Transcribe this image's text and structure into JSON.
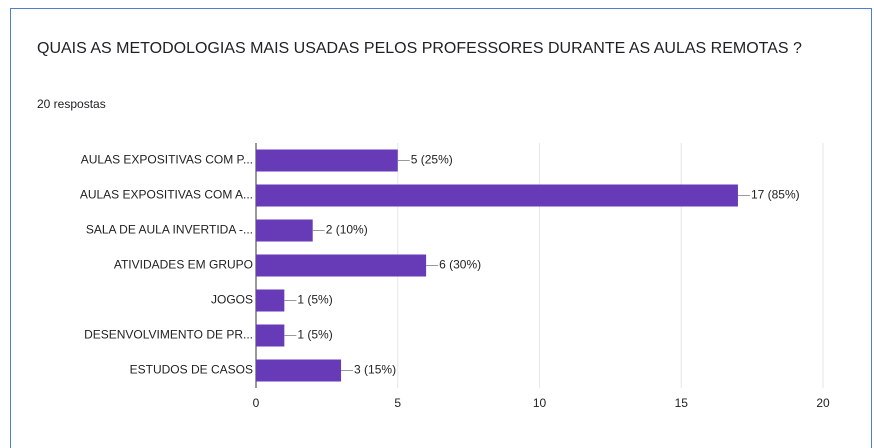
{
  "chart_data": {
    "type": "barh",
    "title": "QUAIS AS METODOLOGIAS MAIS USADAS PELOS PROFESSORES DURANTE AS AULAS REMOTAS ?",
    "subtitle": "20 respostas",
    "categories": [
      "AULAS EXPOSITIVAS COM P...",
      "AULAS EXPOSITIVAS COM A...",
      "SALA DE AULA INVERTIDA -...",
      "ATIVIDADES EM GRUPO",
      "JOGOS",
      "DESENVOLVIMENTO DE PR...",
      "ESTUDOS DE CASOS"
    ],
    "values": [
      5,
      17,
      2,
      6,
      1,
      1,
      3
    ],
    "value_labels": [
      "5 (25%)",
      "17 (85%)",
      "2 (10%)",
      "6 (30%)",
      "1 (5%)",
      "1 (5%)",
      "3 (15%)"
    ],
    "color": "#673ab7",
    "xlim": [
      0,
      20
    ],
    "xticks": [
      0,
      5,
      10,
      15,
      20
    ],
    "grid": true
  }
}
